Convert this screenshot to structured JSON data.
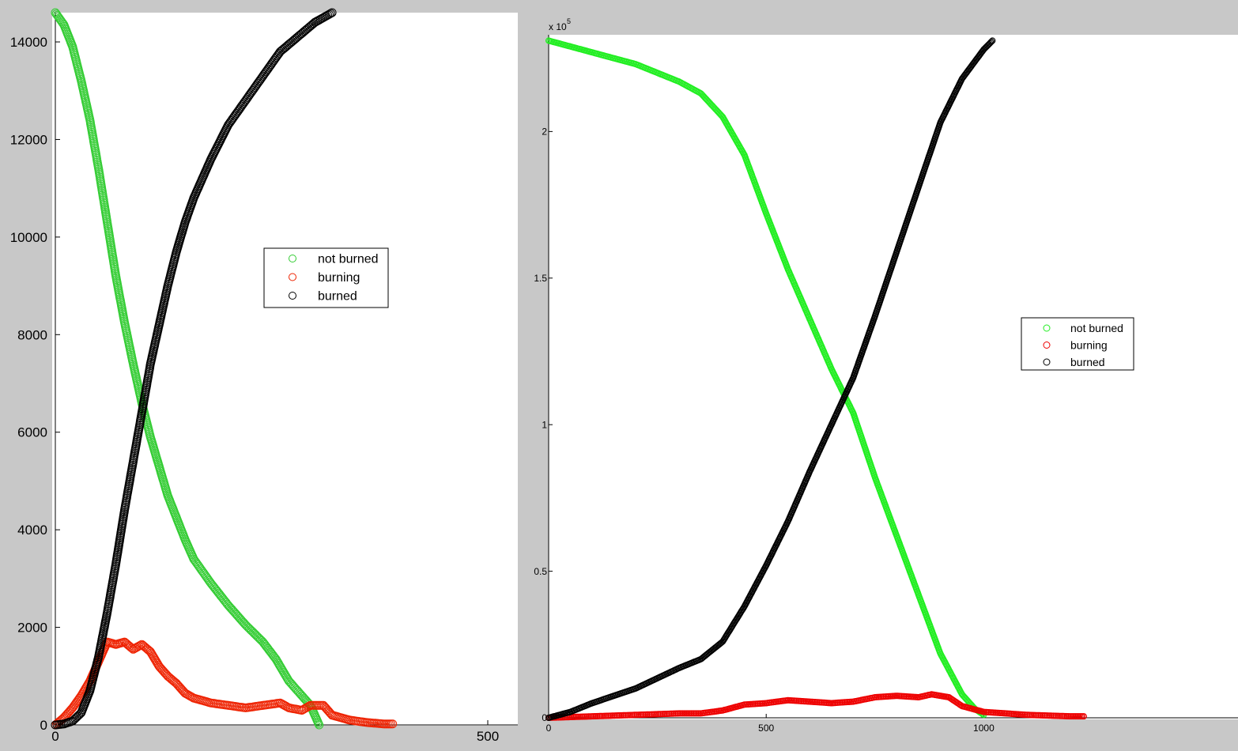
{
  "chart_data": [
    {
      "type": "scatter",
      "title": "",
      "xlabel": "",
      "ylabel": "",
      "xlim": [
        0,
        500
      ],
      "ylim": [
        0,
        14600
      ],
      "x_ticks": [
        0,
        500
      ],
      "y_ticks": [
        0,
        2000,
        4000,
        6000,
        8000,
        10000,
        12000,
        14000
      ],
      "x_tick_labels": [
        "0",
        "500"
      ],
      "y_tick_labels": [
        "0",
        "2000",
        "4000",
        "6000",
        "8000",
        "10000",
        "12000",
        "14000"
      ],
      "legend": {
        "placement": "center-right"
      },
      "series": [
        {
          "name": "not burned",
          "color": "#33cc33",
          "marker": "circle-open",
          "points": [
            [
              0,
              14600
            ],
            [
              10,
              14350
            ],
            [
              20,
              13900
            ],
            [
              30,
              13200
            ],
            [
              40,
              12400
            ],
            [
              50,
              11400
            ],
            [
              60,
              10300
            ],
            [
              70,
              9200
            ],
            [
              80,
              8250
            ],
            [
              90,
              7400
            ],
            [
              100,
              6600
            ],
            [
              110,
              5900
            ],
            [
              120,
              5300
            ],
            [
              130,
              4700
            ],
            [
              140,
              4250
            ],
            [
              150,
              3800
            ],
            [
              160,
              3400
            ],
            [
              180,
              2900
            ],
            [
              200,
              2450
            ],
            [
              220,
              2050
            ],
            [
              240,
              1700
            ],
            [
              255,
              1350
            ],
            [
              270,
              900
            ],
            [
              285,
              600
            ],
            [
              295,
              400
            ],
            [
              305,
              0
            ]
          ]
        },
        {
          "name": "burning",
          "color": "#ee2200",
          "marker": "circle-open",
          "points": [
            [
              0,
              0
            ],
            [
              10,
              150
            ],
            [
              20,
              350
            ],
            [
              30,
              600
            ],
            [
              40,
              900
            ],
            [
              50,
              1300
            ],
            [
              60,
              1700
            ],
            [
              70,
              1650
            ],
            [
              80,
              1700
            ],
            [
              90,
              1550
            ],
            [
              100,
              1650
            ],
            [
              110,
              1500
            ],
            [
              120,
              1200
            ],
            [
              130,
              1000
            ],
            [
              140,
              850
            ],
            [
              150,
              650
            ],
            [
              160,
              550
            ],
            [
              180,
              450
            ],
            [
              200,
              400
            ],
            [
              220,
              350
            ],
            [
              240,
              400
            ],
            [
              260,
              450
            ],
            [
              270,
              350
            ],
            [
              285,
              300
            ],
            [
              295,
              400
            ],
            [
              310,
              400
            ],
            [
              320,
              200
            ],
            [
              340,
              100
            ],
            [
              360,
              50
            ],
            [
              380,
              20
            ],
            [
              390,
              20
            ]
          ]
        },
        {
          "name": "burned",
          "color": "#000000",
          "marker": "circle-open",
          "points": [
            [
              0,
              0
            ],
            [
              10,
              20
            ],
            [
              20,
              80
            ],
            [
              30,
              250
            ],
            [
              40,
              700
            ],
            [
              50,
              1400
            ],
            [
              60,
              2300
            ],
            [
              70,
              3300
            ],
            [
              80,
              4400
            ],
            [
              90,
              5400
            ],
            [
              100,
              6400
            ],
            [
              110,
              7400
            ],
            [
              120,
              8200
            ],
            [
              130,
              9000
            ],
            [
              140,
              9700
            ],
            [
              150,
              10300
            ],
            [
              160,
              10800
            ],
            [
              180,
              11600
            ],
            [
              200,
              12300
            ],
            [
              220,
              12800
            ],
            [
              240,
              13300
            ],
            [
              260,
              13800
            ],
            [
              280,
              14100
            ],
            [
              300,
              14400
            ],
            [
              320,
              14600
            ]
          ]
        }
      ]
    },
    {
      "type": "scatter",
      "title": "",
      "xlabel": "",
      "ylabel": "",
      "y_multiplier": "x 10",
      "y_multiplier_exp": "5",
      "xlim": [
        0,
        1250
      ],
      "ylim": [
        0,
        2.33
      ],
      "x_ticks": [
        0,
        500,
        1000
      ],
      "y_ticks": [
        0,
        0.5,
        1,
        1.5,
        2
      ],
      "x_tick_labels": [
        "0",
        "500",
        "1000"
      ],
      "y_tick_labels": [
        "0",
        "0.5",
        "1",
        "1.5",
        "2"
      ],
      "legend": {
        "placement": "center-right"
      },
      "series": [
        {
          "name": "not burned",
          "color": "#22ee22",
          "marker": "circle-open",
          "points": [
            [
              0,
              2.31
            ],
            [
              50,
              2.29
            ],
            [
              100,
              2.27
            ],
            [
              200,
              2.23
            ],
            [
              300,
              2.17
            ],
            [
              350,
              2.13
            ],
            [
              400,
              2.05
            ],
            [
              450,
              1.92
            ],
            [
              500,
              1.72
            ],
            [
              550,
              1.53
            ],
            [
              600,
              1.36
            ],
            [
              650,
              1.19
            ],
            [
              700,
              1.04
            ],
            [
              750,
              0.82
            ],
            [
              800,
              0.62
            ],
            [
              850,
              0.42
            ],
            [
              900,
              0.22
            ],
            [
              950,
              0.08
            ],
            [
              980,
              0.03
            ],
            [
              1000,
              0.01
            ]
          ]
        },
        {
          "name": "burning",
          "color": "#ee0000",
          "marker": "circle-open",
          "points": [
            [
              0,
              0
            ],
            [
              100,
              0.005
            ],
            [
              200,
              0.01
            ],
            [
              300,
              0.015
            ],
            [
              350,
              0.015
            ],
            [
              400,
              0.025
            ],
            [
              450,
              0.045
            ],
            [
              500,
              0.05
            ],
            [
              550,
              0.06
            ],
            [
              600,
              0.055
            ],
            [
              650,
              0.05
            ],
            [
              700,
              0.055
            ],
            [
              750,
              0.07
            ],
            [
              800,
              0.075
            ],
            [
              850,
              0.07
            ],
            [
              880,
              0.08
            ],
            [
              920,
              0.07
            ],
            [
              950,
              0.04
            ],
            [
              1000,
              0.02
            ],
            [
              1100,
              0.01
            ],
            [
              1200,
              0.005
            ],
            [
              1230,
              0.005
            ]
          ]
        },
        {
          "name": "burned",
          "color": "#000000",
          "marker": "circle-open",
          "points": [
            [
              0,
              0
            ],
            [
              50,
              0.02
            ],
            [
              100,
              0.05
            ],
            [
              200,
              0.1
            ],
            [
              300,
              0.17
            ],
            [
              350,
              0.2
            ],
            [
              400,
              0.26
            ],
            [
              450,
              0.38
            ],
            [
              500,
              0.52
            ],
            [
              550,
              0.67
            ],
            [
              600,
              0.84
            ],
            [
              650,
              1.0
            ],
            [
              700,
              1.16
            ],
            [
              750,
              1.37
            ],
            [
              800,
              1.59
            ],
            [
              850,
              1.81
            ],
            [
              900,
              2.03
            ],
            [
              950,
              2.18
            ],
            [
              1000,
              2.28
            ],
            [
              1020,
              2.31
            ]
          ]
        }
      ]
    }
  ]
}
